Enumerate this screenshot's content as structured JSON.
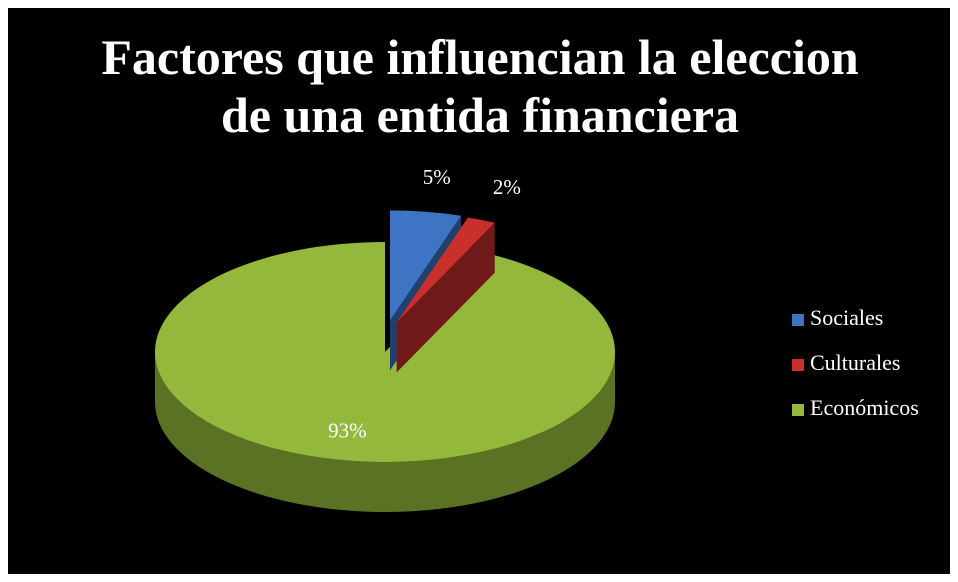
{
  "chart_data": {
    "type": "pie",
    "title": "Factores que influencian la eleccion de una entida financiera",
    "categories": [
      "Sociales",
      "Culturales",
      "Económicos"
    ],
    "values": [
      5,
      2,
      93
    ],
    "value_labels": [
      "5%",
      "2%",
      "93%"
    ],
    "colors": [
      "#3d74c4",
      "#c9302c",
      "#93b83c"
    ],
    "legend": "right"
  }
}
